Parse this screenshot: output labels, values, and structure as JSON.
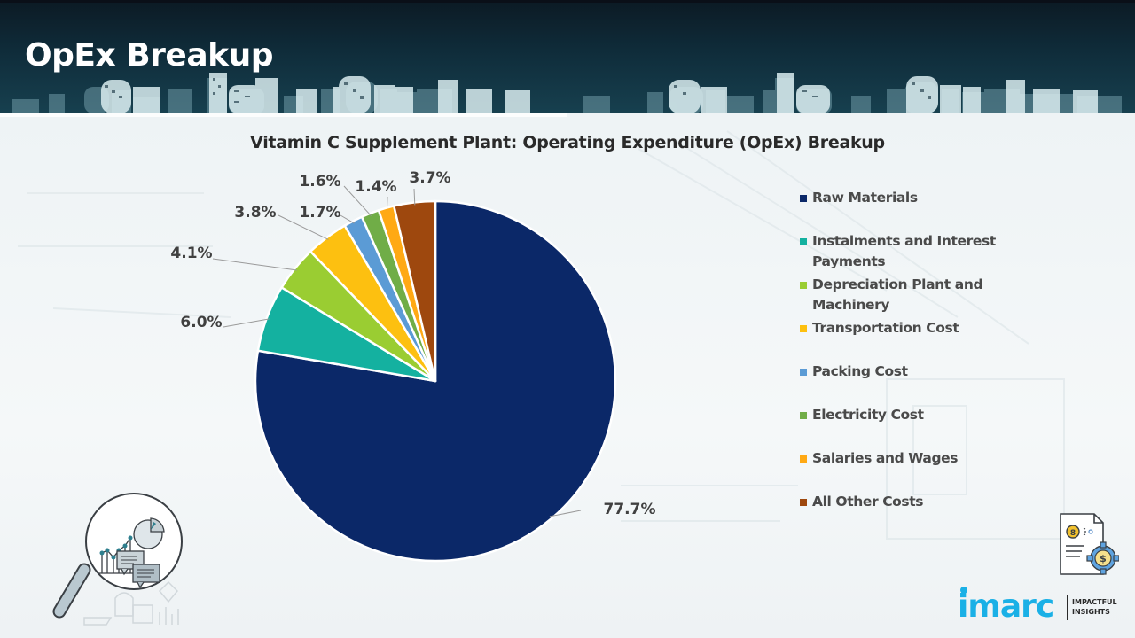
{
  "header": {
    "title": "OpEx Breakup"
  },
  "chart_data": {
    "type": "pie",
    "title": "Vitamin C Supplement Plant: Operating Expenditure (OpEx) Breakup",
    "start_angle": "12 o'clock",
    "direction": "clockwise",
    "legend_position": "right",
    "slices": [
      {
        "label": "Raw Materials",
        "value": 77.7,
        "display": "77.7%",
        "color": "#0b2868"
      },
      {
        "label": "Instalments and Interest Payments",
        "value": 6.0,
        "display": "6.0%",
        "color": "#14b1a0"
      },
      {
        "label": "Depreciation Plant and Machinery",
        "value": 4.1,
        "display": "4.1%",
        "color": "#9acd32"
      },
      {
        "label": "Transportation Cost",
        "value": 3.8,
        "display": "3.8%",
        "color": "#fdc010"
      },
      {
        "label": "Packing Cost",
        "value": 1.7,
        "display": "1.7%",
        "color": "#5b9bd5"
      },
      {
        "label": "Electricity Cost",
        "value": 1.6,
        "display": "1.6%",
        "color": "#70ad47"
      },
      {
        "label": "Salaries and Wages",
        "value": 1.4,
        "display": "1.4%",
        "color": "#ffa914"
      },
      {
        "label": "All Other Costs",
        "value": 3.7,
        "display": "3.7%",
        "color": "#9e480e"
      }
    ]
  },
  "legend": {
    "items": [
      {
        "lines": [
          "Raw Materials"
        ]
      },
      {
        "lines": [
          "Instalments and Interest",
          "Payments"
        ]
      },
      {
        "lines": [
          "Depreciation Plant and",
          "Machinery"
        ]
      },
      {
        "lines": [
          "Transportation Cost"
        ]
      },
      {
        "lines": [
          "Packing Cost"
        ]
      },
      {
        "lines": [
          "Electricity Cost"
        ]
      },
      {
        "lines": [
          "Salaries and Wages"
        ]
      },
      {
        "lines": [
          "All Other Costs"
        ]
      }
    ]
  },
  "logo": {
    "brand": "imarc",
    "tagline_1": "IMPACTFUL",
    "tagline_2": "INSIGHTS"
  },
  "icons": {
    "left": "magnifier-analytics-icon",
    "right": "document-cost-gear-icon"
  }
}
